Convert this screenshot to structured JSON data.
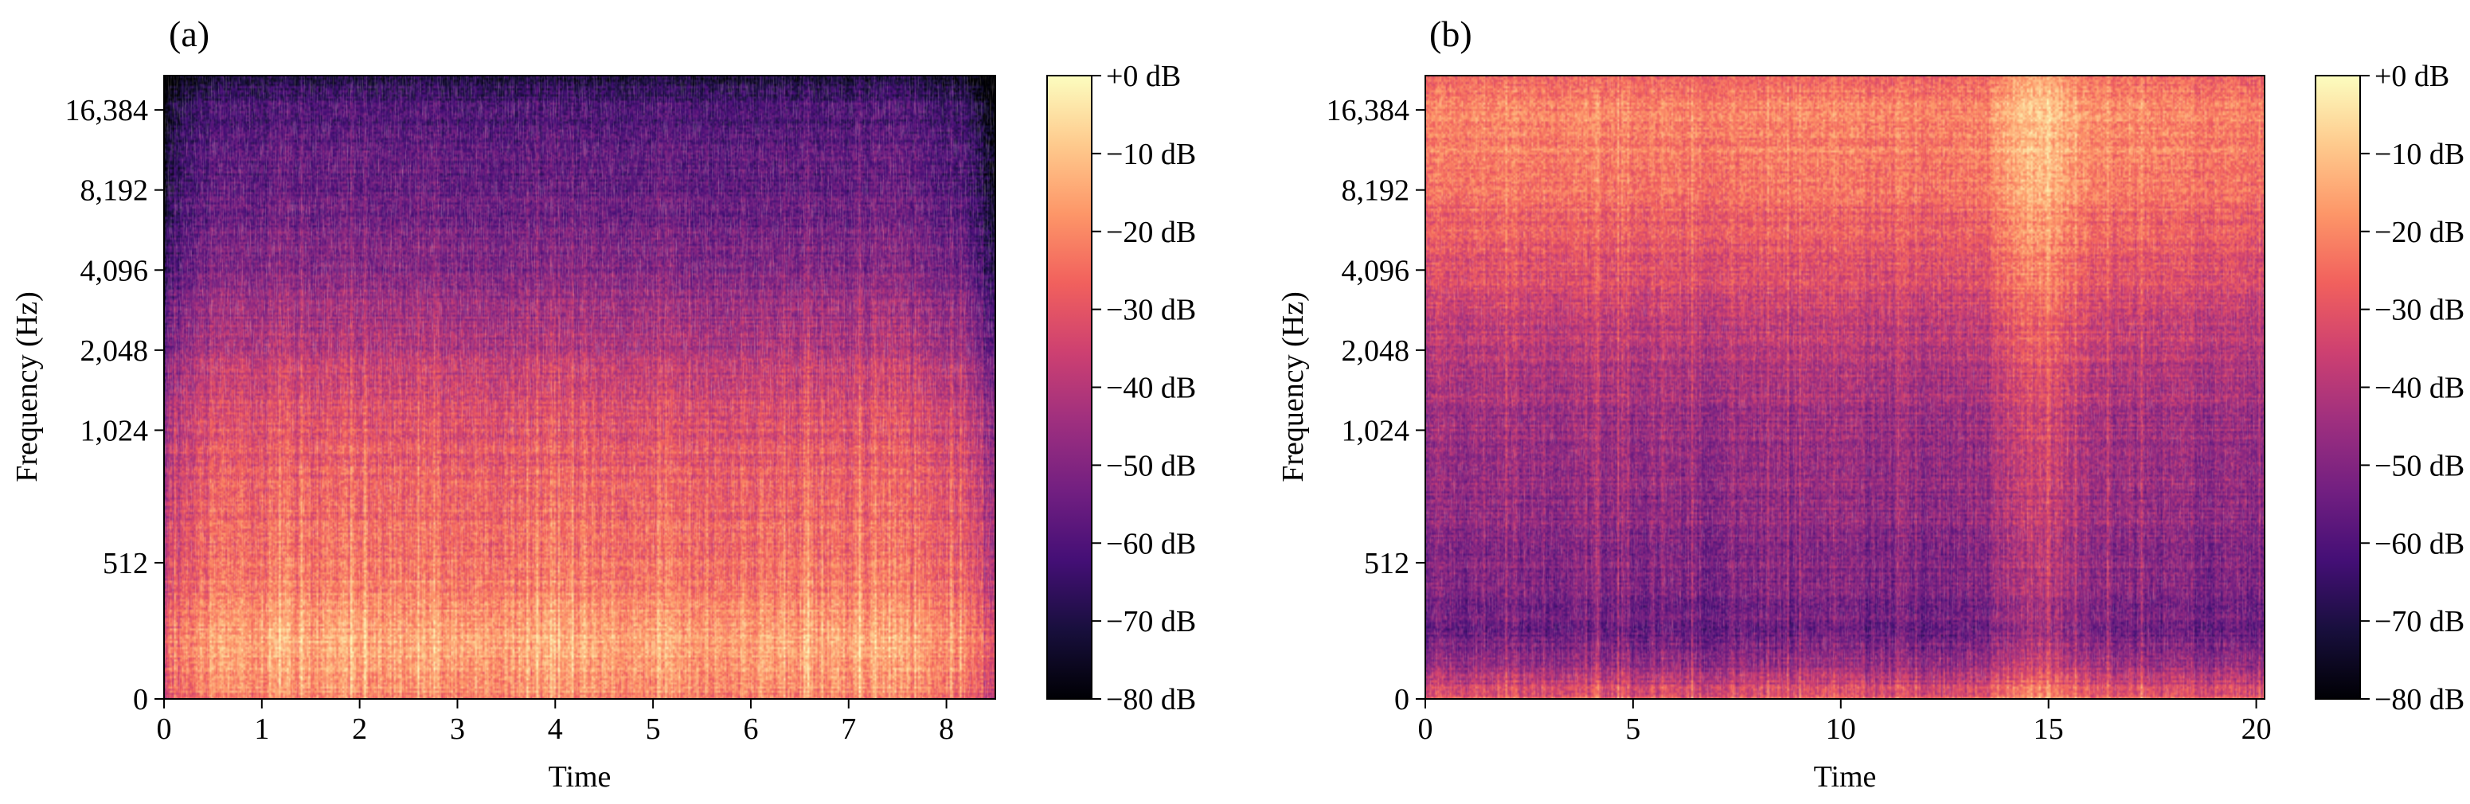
{
  "figure": {
    "colormap": [
      "#000004",
      "#180f3d",
      "#440f76",
      "#721f81",
      "#9e2f7f",
      "#cd4071",
      "#f1605d",
      "#fd9668",
      "#feca8d",
      "#fcfdbf"
    ]
  },
  "chart_data": [
    {
      "type": "heatmap",
      "panel_label": "(a)",
      "xlabel": "Time",
      "ylabel": "Frequency (Hz)",
      "xlim": [
        0,
        8.5
      ],
      "x_ticks": [
        0,
        1,
        2,
        3,
        4,
        5,
        6,
        7,
        8
      ],
      "y_scale": "symlog",
      "ylim": [
        0,
        22050
      ],
      "y_ticks": [
        0,
        512,
        1024,
        2048,
        4096,
        8192,
        16384
      ],
      "y_tick_labels": [
        "0",
        "512",
        "1,024",
        "2,048",
        "4,096",
        "8,192",
        "16,384"
      ],
      "colorbar": {
        "ticks": [
          0,
          -10,
          -20,
          -30,
          -40,
          -50,
          -60,
          -70,
          -80
        ],
        "labels": [
          "+0 dB",
          "−10 dB",
          "−20 dB",
          "−30 dB",
          "−40 dB",
          "−50 dB",
          "−60 dB",
          "−70 dB",
          "−80 dB"
        ],
        "range": [
          -80,
          0
        ]
      },
      "level_profile": {
        "frequency": [
          0,
          200,
          512,
          1024,
          2048,
          4096,
          8192,
          16384,
          22050
        ],
        "db": [
          -22,
          -16,
          -26,
          -32,
          -42,
          -52,
          -58,
          -63,
          -72
        ]
      },
      "time_profile": {
        "time": [
          0,
          0.2,
          0.5,
          1.2,
          2.6,
          4,
          5,
          6.5,
          7.5,
          8.2,
          8.5
        ],
        "db_offset": [
          -18,
          -4,
          0,
          1,
          2,
          0,
          1,
          0,
          2,
          -3,
          -18
        ]
      }
    },
    {
      "type": "heatmap",
      "panel_label": "(b)",
      "xlabel": "Time",
      "ylabel": "Frequency (Hz)",
      "xlim": [
        0,
        20.2
      ],
      "x_ticks": [
        0,
        5,
        10,
        15,
        20
      ],
      "y_scale": "symlog",
      "ylim": [
        0,
        22050
      ],
      "y_ticks": [
        0,
        512,
        1024,
        2048,
        4096,
        8192,
        16384
      ],
      "y_tick_labels": [
        "0",
        "512",
        "1,024",
        "2,048",
        "4,096",
        "8,192",
        "16,384"
      ],
      "colorbar": {
        "ticks": [
          0,
          -10,
          -20,
          -30,
          -40,
          -50,
          -60,
          -70,
          -80
        ],
        "labels": [
          "+0 dB",
          "−10 dB",
          "−20 dB",
          "−30 dB",
          "−40 dB",
          "−50 dB",
          "−60 dB",
          "−70 dB",
          "−80 dB"
        ],
        "range": [
          -80,
          0
        ]
      },
      "level_profile": {
        "frequency": [
          0,
          100,
          250,
          512,
          1024,
          2048,
          4096,
          8192,
          16384,
          22050
        ],
        "db": [
          -28,
          -44,
          -56,
          -50,
          -46,
          -40,
          -33,
          -24,
          -21,
          -25
        ]
      },
      "time_profile": {
        "time": [
          0,
          2,
          5,
          10,
          13.5,
          14.3,
          15,
          16,
          19,
          20.2
        ],
        "db_offset": [
          0,
          1,
          0,
          0,
          0,
          11,
          12,
          2,
          0,
          -2
        ]
      }
    }
  ]
}
